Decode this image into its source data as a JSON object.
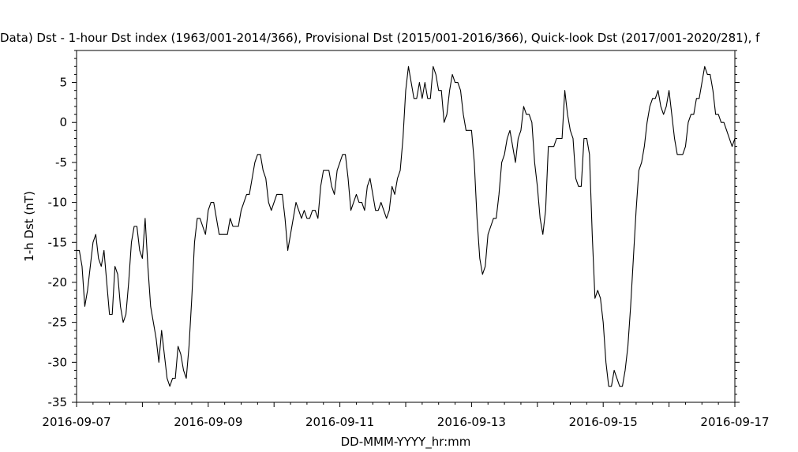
{
  "chart_data": {
    "type": "line",
    "title": "Data)  Dst - 1-hour Dst index (1963/001-2014/366), Provisional Dst (2015/001-2016/366), Quick-look Dst (2017/001-2020/281), f",
    "xlabel": "DD-MMM-YYYY_hr:mm",
    "ylabel": "1-h Dst (nT)",
    "xlim": [
      "2016-09-07 00:00",
      "2016-09-17 00:00"
    ],
    "ylim": [
      -35,
      9
    ],
    "x_tick_labels": [
      "2016-09-07",
      "2016-09-09",
      "2016-09-11",
      "2016-09-13",
      "2016-09-15",
      "2016-09-17"
    ],
    "x_tick_dates": [
      "2016-09-07",
      "2016-09-08",
      "2016-09-09",
      "2016-09-10",
      "2016-09-11",
      "2016-09-12",
      "2016-09-13",
      "2016-09-14",
      "2016-09-15",
      "2016-09-16",
      "2016-09-17"
    ],
    "y_ticks": [
      5,
      0,
      -5,
      -10,
      -15,
      -20,
      -25,
      -30,
      -35
    ],
    "y_tick_labels": [
      "5",
      "0",
      "-5",
      "-10",
      "-15",
      "-20",
      "-25",
      "-30",
      "-35"
    ],
    "grid": false,
    "legend": "none",
    "line_color": "#000000",
    "series": [
      {
        "x_start": "2016-09-07 00:00",
        "x_step_hours": 1,
        "values": [
          -16,
          -16,
          -18,
          -23,
          -21,
          -18,
          -15,
          -14,
          -17,
          -18,
          -16,
          -20,
          -24,
          -24,
          -18,
          -19,
          -23,
          -25,
          -24,
          -20,
          -15,
          -13,
          -13,
          -16,
          -17,
          -12,
          -18,
          -23,
          -25,
          -27,
          -30,
          -26,
          -29,
          -32,
          -33,
          -32,
          -32,
          -28,
          -29,
          -31,
          -32,
          -28,
          -22,
          -15,
          -12,
          -12,
          -13,
          -14,
          -11,
          -10,
          -10,
          -12,
          -14,
          -14,
          -14,
          -14,
          -12,
          -13,
          -13,
          -13,
          -11,
          -10,
          -9,
          -9,
          -7,
          -5,
          -4,
          -4,
          -6,
          -7,
          -10,
          -11,
          -10,
          -9,
          -9,
          -9,
          -12,
          -16,
          -14,
          -12,
          -10,
          -11,
          -12,
          -11,
          -12,
          -12,
          -11,
          -11,
          -12,
          -8,
          -6,
          -6,
          -6,
          -8,
          -9,
          -6,
          -5,
          -4,
          -4,
          -7,
          -11,
          -10,
          -9,
          -10,
          -10,
          -11,
          -8,
          -7,
          -9,
          -11,
          -11,
          -10,
          -11,
          -12,
          -11,
          -8,
          -9,
          -7,
          -6,
          -2,
          4,
          7,
          5,
          3,
          3,
          5,
          3,
          5,
          3,
          3,
          7,
          6,
          4,
          4,
          0,
          1,
          4,
          6,
          5,
          5,
          4,
          1,
          -1,
          -1,
          -1,
          -5,
          -12,
          -17,
          -19,
          -18,
          -14,
          -13,
          -12,
          -12,
          -9,
          -5,
          -4,
          -2,
          -1,
          -3,
          -5,
          -2,
          -1,
          2,
          1,
          1,
          0,
          -5,
          -8,
          -12,
          -14,
          -11,
          -3,
          -3,
          -3,
          -2,
          -2,
          -2,
          4,
          1,
          -1,
          -2,
          -7,
          -8,
          -8,
          -2,
          -2,
          -4,
          -14,
          -22,
          -21,
          -22,
          -25,
          -30,
          -33,
          -33,
          -31,
          -32,
          -33,
          -33,
          -31,
          -28,
          -23,
          -17,
          -11,
          -6,
          -5,
          -3,
          0,
          2,
          3,
          3,
          4,
          2,
          1,
          2,
          4,
          1,
          -2,
          -4,
          -4,
          -4,
          -3,
          0,
          1,
          1,
          3,
          3,
          5,
          7,
          6,
          6,
          4,
          1,
          1,
          0,
          0,
          -1,
          -2,
          -3,
          -2
        ]
      }
    ]
  }
}
